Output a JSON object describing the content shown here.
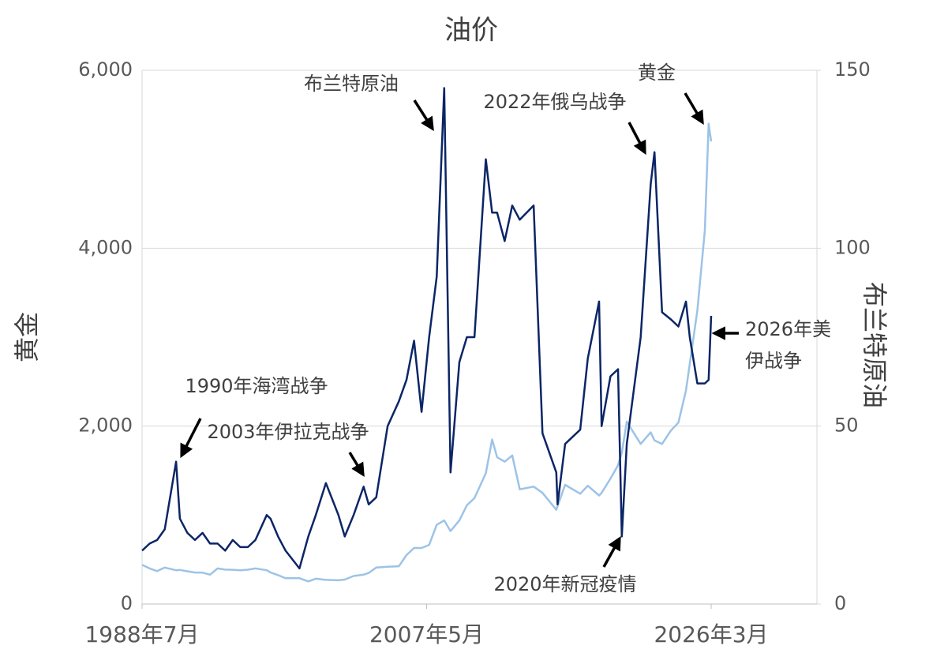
{
  "chart_data": {
    "type": "line",
    "title": "油价",
    "ylabel": "黄金",
    "y2label": "布兰特原油",
    "x": [
      "1988-07",
      "1989-01",
      "1989-07",
      "1990-01",
      "1990-10",
      "1991-01",
      "1991-07",
      "1992-01",
      "1992-07",
      "1993-01",
      "1993-07",
      "1994-01",
      "1994-07",
      "1995-01",
      "1995-07",
      "1996-01",
      "1996-10",
      "1997-01",
      "1997-07",
      "1998-01",
      "1998-12",
      "1999-07",
      "2000-01",
      "2000-09",
      "2001-07",
      "2001-12",
      "2002-07",
      "2003-03",
      "2003-07",
      "2004-01",
      "2004-10",
      "2005-07",
      "2006-01",
      "2006-07",
      "2007-01",
      "2007-07",
      "2008-01",
      "2008-07",
      "2008-12",
      "2009-07",
      "2010-01",
      "2010-07",
      "2011-04",
      "2011-09",
      "2012-01",
      "2012-07",
      "2013-01",
      "2013-07",
      "2014-06",
      "2015-01",
      "2015-12",
      "2016-01",
      "2016-07",
      "2017-07",
      "2018-01",
      "2018-10",
      "2018-12",
      "2019-07",
      "2020-01",
      "2020-04",
      "2020-08",
      "2021-07",
      "2022-03",
      "2022-06",
      "2022-12",
      "2023-07",
      "2024-01",
      "2024-07",
      "2024-10",
      "2025-04",
      "2025-10",
      "2026-01",
      "2026-03"
    ],
    "series": [
      {
        "name": "黄金",
        "color": "#9dc3e6",
        "axis": "y",
        "values": [
          440,
          400,
          370,
          410,
          380,
          383,
          368,
          354,
          353,
          330,
          400,
          387,
          385,
          379,
          386,
          400,
          380,
          355,
          325,
          290,
          290,
          255,
          285,
          272,
          267,
          275,
          315,
          330,
          350,
          410,
          420,
          425,
          550,
          630,
          630,
          665,
          890,
          940,
          820,
          940,
          1110,
          1190,
          1470,
          1850,
          1650,
          1600,
          1670,
          1290,
          1320,
          1250,
          1060,
          1100,
          1340,
          1240,
          1330,
          1220,
          1250,
          1410,
          1560,
          1700,
          2050,
          1800,
          1930,
          1840,
          1800,
          1950,
          2040,
          2400,
          2700,
          3300,
          4200,
          5400,
          5200
        ]
      },
      {
        "name": "布兰特原油",
        "color": "#0b2566",
        "axis": "y2",
        "values": [
          15,
          17,
          18,
          21,
          40,
          24,
          20,
          18,
          20,
          17,
          17,
          15,
          18,
          16,
          16,
          18,
          25,
          24,
          19,
          15,
          10,
          19,
          25,
          34,
          25,
          19,
          25,
          33,
          28,
          30,
          50,
          57,
          63,
          74,
          54,
          75,
          92,
          145,
          37,
          68,
          75,
          75,
          125,
          110,
          110,
          102,
          112,
          108,
          112,
          48,
          37,
          28,
          45,
          49,
          69,
          85,
          50,
          64,
          66,
          19,
          45,
          75,
          118,
          127,
          82,
          80,
          78,
          85,
          75,
          62,
          62,
          63,
          81
        ]
      }
    ],
    "xlim": [
      "1988-07",
      "2033-03"
    ],
    "xticks": [
      {
        "value": "1988-07",
        "label": "1988年7月"
      },
      {
        "value": "2007-05",
        "label": "2007年5月"
      },
      {
        "value": "2026-03",
        "label": "2026年3月"
      }
    ],
    "ylim": [
      0,
      6000
    ],
    "yticks": [
      0,
      {
        "value": 2000,
        "label": "2,000"
      },
      {
        "value": 4000,
        "label": "4,000"
      },
      {
        "value": 6000,
        "label": "6,000"
      }
    ],
    "y2lim": [
      0,
      150
    ],
    "y2ticks": [
      0,
      50,
      100,
      150
    ],
    "grid": true,
    "annotations": [
      {
        "lines": [
          "布兰特原油"
        ]
      },
      {
        "lines": [
          "2022年俄乌战争"
        ]
      },
      {
        "lines": [
          "黄金"
        ]
      },
      {
        "lines": [
          "1990年海湾战争"
        ]
      },
      {
        "lines": [
          "2003年伊拉克战争"
        ]
      },
      {
        "lines": [
          "2026年美",
          "伊战争"
        ]
      },
      {
        "lines": [
          "2020年新冠疫情"
        ]
      }
    ]
  }
}
